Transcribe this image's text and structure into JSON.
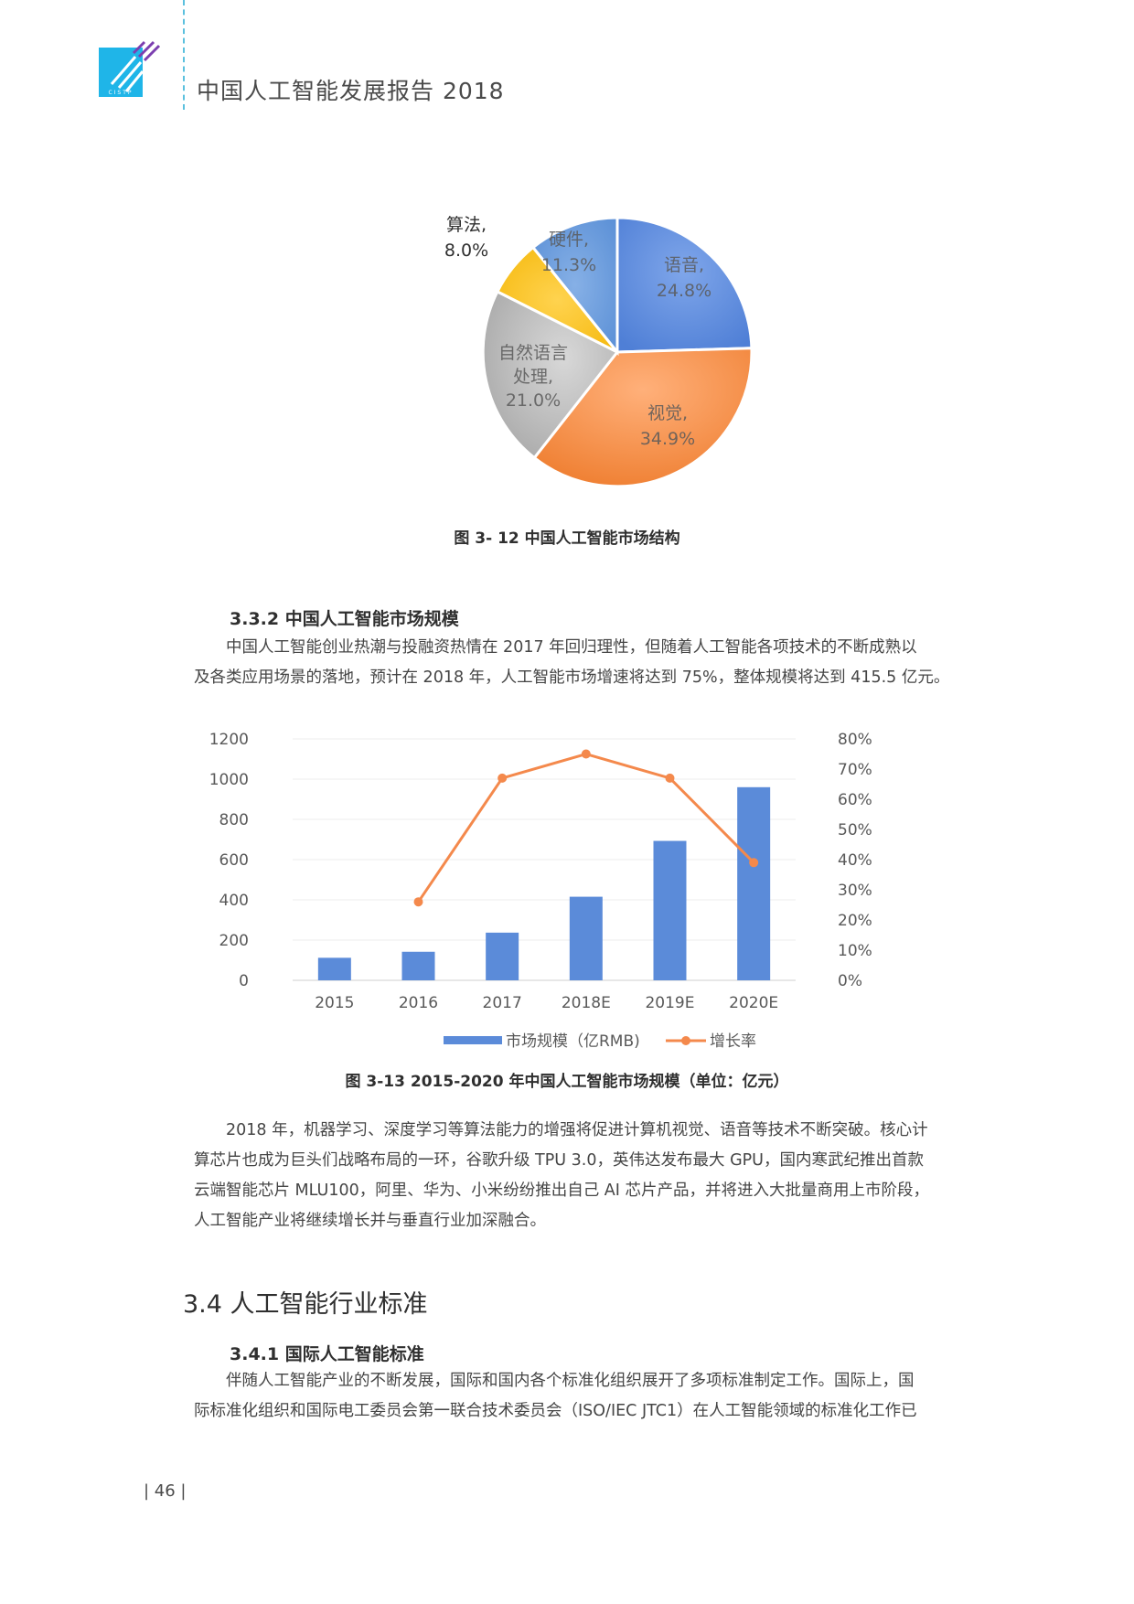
{
  "header": {
    "logo_text": "CISTP",
    "title": "中国人工智能发展报告 2018"
  },
  "fig12": {
    "caption": "图 3- 12  中国人工智能市场结构",
    "slices": [
      {
        "label": "语音,",
        "value_text": "24.8%"
      },
      {
        "label": "视觉,",
        "value_text": "34.9%"
      },
      {
        "label_line1": "自然语言",
        "label_line2": "处理,",
        "value_text": "21.0%"
      },
      {
        "label": "算法,",
        "value_text": "8.0%"
      },
      {
        "label": "硬件,",
        "value_text": "11.3%"
      }
    ]
  },
  "sec332": {
    "heading": "3.3.2 中国人工智能市场规模",
    "lines": [
      "　　中国人工智能创业热潮与投融资热情在 2017 年回归理性，但随着人工智能各项技术的不断成熟以",
      "及各类应用场景的落地，预计在 2018 年，人工智能市场增速将达到 75%，整体规模将达到 415.5 亿元。"
    ]
  },
  "chart_data": {
    "type": "bar",
    "categories": [
      "2015",
      "2016",
      "2017",
      "2018E",
      "2019E",
      "2020E"
    ],
    "series": [
      {
        "name": "市场规模（亿RMB)",
        "type": "bar",
        "axis": "left",
        "color": "#5b8bd9",
        "values": [
          112,
          142,
          237,
          415.5,
          693,
          960
        ]
      },
      {
        "name": "增长率",
        "type": "line",
        "axis": "right",
        "color": "#f4894c",
        "values": [
          null,
          0.26,
          0.67,
          0.75,
          0.67,
          0.39
        ]
      }
    ],
    "ylim": [
      0,
      1200
    ],
    "yticks": [
      "0",
      "200",
      "400",
      "600",
      "800",
      "1000",
      "1200"
    ],
    "y2lim": [
      0,
      0.8
    ],
    "y2ticks": [
      "0%",
      "10%",
      "20%",
      "30%",
      "40%",
      "50%",
      "60%",
      "70%",
      "80%"
    ],
    "legend_position": "bottom",
    "grid": true
  },
  "fig13": {
    "caption": "图 3-13  2015-2020 年中国人工智能市场规模（单位：亿元）"
  },
  "body2": {
    "lines": [
      "　　2018 年，机器学习、深度学习等算法能力的增强将促进计算机视觉、语音等技术不断突破。核心计",
      "算芯片也成为巨头们战略布局的一环，谷歌升级 TPU 3.0，英伟达发布最大 GPU，国内寒武纪推出首款",
      "云端智能芯片 MLU100，阿里、华为、小米纷纷推出自己 AI 芯片产品，并将进入大批量商用上市阶段，",
      "人工智能产业将继续增长并与垂直行业加深融合。"
    ]
  },
  "sec34": {
    "heading": "3.4 人工智能行业标准"
  },
  "sec341": {
    "heading": "3.4.1 国际人工智能标准",
    "lines": [
      "　　伴随人工智能产业的不断发展，国际和国内各个标准化组织展开了多项标准制定工作。国际上，国",
      "际标准化组织和国际电工委员会第一联合技术委员会（ISO/IEC JTC1）在人工智能领域的标准化工作已"
    ]
  },
  "footer": {
    "page_number": "46"
  }
}
